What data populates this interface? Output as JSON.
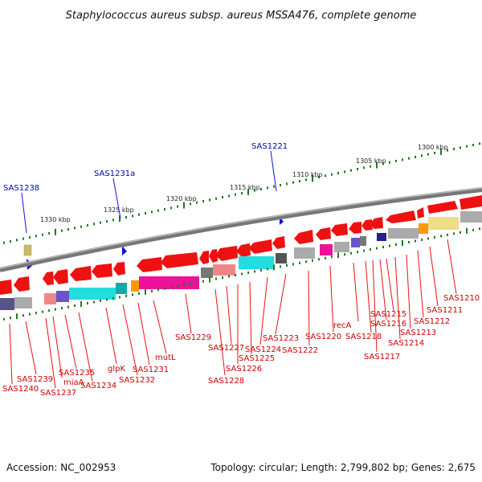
{
  "title": "Staphylococcus aureus subsp. aureus MSSA476, complete genome",
  "footer": {
    "accession": "Accession: NC_002953",
    "summary": "Topology: circular; Length: 2,799,802 bp; Genes: 2,675"
  },
  "scale_labels": [
    "1300 kbp",
    "1305 kbp",
    "1310 kbp",
    "1315 kbp",
    "1320 kbp",
    "1325 kbp",
    "1330 kbp"
  ],
  "feature_labels": [
    "SAS1221",
    "SAS1231a",
    "SAS1238"
  ],
  "gene_labels": [
    "SAS1210",
    "SAS1211",
    "SAS1212",
    "SAS1213",
    "SAS1214",
    "SAS1215",
    "SAS1216",
    "SAS1217",
    "SAS1218",
    "recA",
    "SAS1220",
    "SAS1222",
    "SAS1223",
    "SAS1224",
    "SAS1225",
    "SAS1226",
    "SAS1227",
    "SAS1228",
    "SAS1229",
    "mutL",
    "SAS1231",
    "SAS1232",
    "glpK",
    "SAS1234",
    "SAS1235",
    "miaA",
    "SAS1237",
    "SAS1239",
    "SAS1240"
  ],
  "colors": {
    "gene_red": "#ee1111",
    "feature_blue": "#1111dd",
    "backbone_gray": "#888888",
    "tick_green": "#227722",
    "cog_cyan": "#22dddd",
    "cog_magenta": "#ee1199",
    "cog_gray": "#aaaaaa",
    "cog_purple": "#6655cc",
    "cog_salmon": "#ee8888",
    "cog_orange": "#ff9900",
    "cog_khaki": "#eedd88",
    "cog_navy": "#222288"
  }
}
